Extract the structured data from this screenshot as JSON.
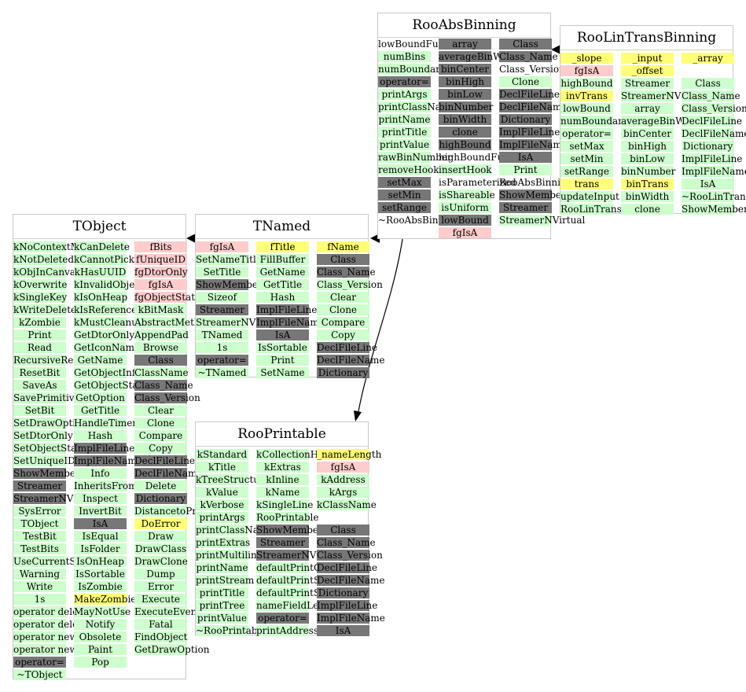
{
  "colors": {
    "green": "#ccffcc",
    "gray": "#777777",
    "pink": "#ffcccc",
    "yellow": "#ffff77",
    "border": "#c8c8c8",
    "edge": "#000000"
  },
  "classes": [
    {
      "id": "rooabsbinning",
      "title": "RooAbsBinning",
      "columns": [
        [
          [
            "lowBoundFunc",
            "w"
          ],
          [
            "numBins",
            "g"
          ],
          [
            "numBoundaries",
            "g"
          ],
          [
            "operator=",
            "d"
          ],
          [
            "printArgs",
            "g"
          ],
          [
            "printClassName",
            "g"
          ],
          [
            "printName",
            "g"
          ],
          [
            "printTitle",
            "g"
          ],
          [
            "printValue",
            "g"
          ],
          [
            "rawBinNumber",
            "g"
          ],
          [
            "removeHook",
            "g"
          ],
          [
            "setMax",
            "d"
          ],
          [
            "setMin",
            "d"
          ],
          [
            "setRange",
            "d"
          ],
          [
            "~RooAbsBinning",
            "w"
          ]
        ],
        [
          [
            "array",
            "d"
          ],
          [
            "averageBinWidth",
            "d"
          ],
          [
            "binCenter",
            "d"
          ],
          [
            "binHigh",
            "d"
          ],
          [
            "binLow",
            "d"
          ],
          [
            "binNumber",
            "d"
          ],
          [
            "binWidth",
            "d"
          ],
          [
            "clone",
            "d"
          ],
          [
            "highBound",
            "d"
          ],
          [
            "highBoundFunc",
            "w"
          ],
          [
            "insertHook",
            "g"
          ],
          [
            "isParameterized",
            "w"
          ],
          [
            "isShareable",
            "g"
          ],
          [
            "isUniform",
            "g"
          ],
          [
            "lowBound",
            "d"
          ],
          [
            "fgIsA",
            "p"
          ]
        ],
        [
          [
            "Class",
            "d"
          ],
          [
            "Class_Name",
            "d"
          ],
          [
            "Class_Version",
            "w"
          ],
          [
            "Clone",
            "g"
          ],
          [
            "DeclFileLine",
            "d"
          ],
          [
            "DeclFileName",
            "d"
          ],
          [
            "Dictionary",
            "d"
          ],
          [
            "ImplFileLine",
            "d"
          ],
          [
            "ImplFileName",
            "d"
          ],
          [
            "IsA",
            "d"
          ],
          [
            "Print",
            "g"
          ],
          [
            "RooAbsBinning",
            "w"
          ],
          [
            "ShowMembers",
            "d"
          ],
          [
            "Streamer",
            "d"
          ],
          [
            "StreamerNVirtual",
            "g"
          ]
        ]
      ]
    },
    {
      "id": "roolintransbinning",
      "title": "RooLinTransBinning",
      "columns": [
        [
          [
            "_slope",
            "y"
          ],
          [
            "fgIsA",
            "p"
          ],
          [
            "highBound",
            "g"
          ],
          [
            "invTrans",
            "y"
          ],
          [
            "lowBound",
            "g"
          ],
          [
            "numBoundaries",
            "g"
          ],
          [
            "operator=",
            "g"
          ],
          [
            "setMax",
            "g"
          ],
          [
            "setMin",
            "g"
          ],
          [
            "setRange",
            "g"
          ],
          [
            "trans",
            "y"
          ],
          [
            "updateInput",
            "g"
          ],
          [
            "RooLinTransBinning",
            "g"
          ]
        ],
        [
          [
            "_input",
            "y"
          ],
          [
            "_offset",
            "y"
          ],
          [
            "Streamer",
            "g"
          ],
          [
            "StreamerNVirtual",
            "g"
          ],
          [
            "array",
            "g"
          ],
          [
            "averageBinWidth",
            "g"
          ],
          [
            "binCenter",
            "g"
          ],
          [
            "binHigh",
            "g"
          ],
          [
            "binLow",
            "g"
          ],
          [
            "binNumber",
            "g"
          ],
          [
            "binTrans",
            "y"
          ],
          [
            "binWidth",
            "g"
          ],
          [
            "clone",
            "g"
          ]
        ],
        [
          [
            "_array",
            "y"
          ],
          [
            "",
            "w"
          ],
          [
            "Class",
            "g"
          ],
          [
            "Class_Name",
            "g"
          ],
          [
            "Class_Version",
            "g"
          ],
          [
            "DeclFileLine",
            "g"
          ],
          [
            "DeclFileName",
            "g"
          ],
          [
            "Dictionary",
            "g"
          ],
          [
            "ImplFileLine",
            "g"
          ],
          [
            "ImplFileName",
            "g"
          ],
          [
            "IsA",
            "g"
          ],
          [
            "~RooLinTransBinning",
            "g"
          ],
          [
            "ShowMembers",
            "g"
          ]
        ]
      ]
    },
    {
      "id": "tobject",
      "title": "TObject",
      "columns": [
        [
          [
            "kNoContextMenu",
            "g"
          ],
          [
            "kNotDeleted",
            "g"
          ],
          [
            "kObjInCanvas",
            "g"
          ],
          [
            "kOverwrite",
            "g"
          ],
          [
            "kSingleKey",
            "g"
          ],
          [
            "kWriteDelete",
            "g"
          ],
          [
            "kZombie",
            "g"
          ],
          [
            "Print",
            "g"
          ],
          [
            "Read",
            "g"
          ],
          [
            "RecursiveRemove",
            "g"
          ],
          [
            "ResetBit",
            "g"
          ],
          [
            "SaveAs",
            "g"
          ],
          [
            "SavePrimitive",
            "g"
          ],
          [
            "SetBit",
            "g"
          ],
          [
            "SetDrawOption",
            "g"
          ],
          [
            "SetDtorOnly",
            "g"
          ],
          [
            "SetObjectStat",
            "g"
          ],
          [
            "SetUniqueID",
            "g"
          ],
          [
            "ShowMembers",
            "d"
          ],
          [
            "Streamer",
            "d"
          ],
          [
            "StreamerNVirtual",
            "d"
          ],
          [
            "SysError",
            "g"
          ],
          [
            "TObject",
            "g"
          ],
          [
            "TestBit",
            "g"
          ],
          [
            "TestBits",
            "g"
          ],
          [
            "UseCurrentStyle",
            "g"
          ],
          [
            "Warning",
            "g"
          ],
          [
            "Write",
            "g"
          ],
          [
            "1s",
            "g"
          ],
          [
            "operator delete",
            "g"
          ],
          [
            "operator delete[]",
            "g"
          ],
          [
            "operator new",
            "g"
          ],
          [
            "operator new[]",
            "g"
          ],
          [
            "operator=",
            "d"
          ],
          [
            "~TObject",
            "g"
          ]
        ],
        [
          [
            "kCanDelete",
            "g"
          ],
          [
            "kCannotPick",
            "g"
          ],
          [
            "kHasUUID",
            "g"
          ],
          [
            "kInvalidObject",
            "g"
          ],
          [
            "kIsOnHeap",
            "g"
          ],
          [
            "kIsReferenced",
            "g"
          ],
          [
            "kMustCleanup",
            "g"
          ],
          [
            "GetDtorOnly",
            "g"
          ],
          [
            "GetIconName",
            "g"
          ],
          [
            "GetName",
            "g"
          ],
          [
            "GetObjectInfo",
            "g"
          ],
          [
            "GetObjectStat",
            "g"
          ],
          [
            "GetOption",
            "g"
          ],
          [
            "GetTitle",
            "g"
          ],
          [
            "HandleTimer",
            "g"
          ],
          [
            "Hash",
            "g"
          ],
          [
            "ImplFileLine",
            "d"
          ],
          [
            "ImplFileName",
            "d"
          ],
          [
            "Info",
            "g"
          ],
          [
            "InheritsFrom",
            "g"
          ],
          [
            "Inspect",
            "g"
          ],
          [
            "InvertBit",
            "g"
          ],
          [
            "IsA",
            "d"
          ],
          [
            "IsEqual",
            "g"
          ],
          [
            "IsFolder",
            "g"
          ],
          [
            "IsOnHeap",
            "g"
          ],
          [
            "IsSortable",
            "g"
          ],
          [
            "IsZombie",
            "g"
          ],
          [
            "MakeZombie",
            "y"
          ],
          [
            "MayNotUse",
            "g"
          ],
          [
            "Notify",
            "g"
          ],
          [
            "Obsolete",
            "g"
          ],
          [
            "Paint",
            "g"
          ],
          [
            "Pop",
            "g"
          ]
        ],
        [
          [
            "fBits",
            "p"
          ],
          [
            "fUniqueID",
            "p"
          ],
          [
            "fgDtorOnly",
            "p"
          ],
          [
            "fgIsA",
            "p"
          ],
          [
            "fgObjectStat",
            "p"
          ],
          [
            "kBitMask",
            "g"
          ],
          [
            "AbstractMethod",
            "g"
          ],
          [
            "AppendPad",
            "g"
          ],
          [
            "Browse",
            "g"
          ],
          [
            "Class",
            "d"
          ],
          [
            "ClassName",
            "g"
          ],
          [
            "Class_Name",
            "d"
          ],
          [
            "Class_Version",
            "d"
          ],
          [
            "Clear",
            "g"
          ],
          [
            "Clone",
            "g"
          ],
          [
            "Compare",
            "g"
          ],
          [
            "Copy",
            "g"
          ],
          [
            "DeclFileLine",
            "d"
          ],
          [
            "DeclFileName",
            "d"
          ],
          [
            "Delete",
            "g"
          ],
          [
            "Dictionary",
            "d"
          ],
          [
            "DistancetoPrimitive",
            "g"
          ],
          [
            "DoError",
            "y"
          ],
          [
            "Draw",
            "g"
          ],
          [
            "DrawClass",
            "g"
          ],
          [
            "DrawClone",
            "g"
          ],
          [
            "Dump",
            "g"
          ],
          [
            "Error",
            "g"
          ],
          [
            "Execute",
            "g"
          ],
          [
            "ExecuteEvent",
            "g"
          ],
          [
            "Fatal",
            "g"
          ],
          [
            "FindObject",
            "g"
          ],
          [
            "GetDrawOption",
            "g"
          ]
        ]
      ]
    },
    {
      "id": "tnamed",
      "title": "TNamed",
      "columns": [
        [
          [
            "fgIsA",
            "p"
          ],
          [
            "SetNameTitle",
            "g"
          ],
          [
            "SetTitle",
            "g"
          ],
          [
            "ShowMembers",
            "d"
          ],
          [
            "Sizeof",
            "g"
          ],
          [
            "Streamer",
            "d"
          ],
          [
            "StreamerNVirtual",
            "g"
          ],
          [
            "TNamed",
            "g"
          ],
          [
            "1s",
            "g"
          ],
          [
            "operator=",
            "d"
          ],
          [
            "~TNamed",
            "g"
          ]
        ],
        [
          [
            "fTitle",
            "y"
          ],
          [
            "FillBuffer",
            "g"
          ],
          [
            "GetName",
            "g"
          ],
          [
            "GetTitle",
            "g"
          ],
          [
            "Hash",
            "g"
          ],
          [
            "ImplFileLine",
            "d"
          ],
          [
            "ImplFileName",
            "d"
          ],
          [
            "IsA",
            "d"
          ],
          [
            "IsSortable",
            "g"
          ],
          [
            "Print",
            "g"
          ],
          [
            "SetName",
            "g"
          ]
        ],
        [
          [
            "fName",
            "y"
          ],
          [
            "Class",
            "d"
          ],
          [
            "Class_Name",
            "d"
          ],
          [
            "Class_Version",
            "g"
          ],
          [
            "Clear",
            "g"
          ],
          [
            "Clone",
            "g"
          ],
          [
            "Compare",
            "g"
          ],
          [
            "Copy",
            "g"
          ],
          [
            "DeclFileLine",
            "d"
          ],
          [
            "DeclFileName",
            "d"
          ],
          [
            "Dictionary",
            "d"
          ]
        ]
      ]
    },
    {
      "id": "rooprintable",
      "title": "RooPrintable",
      "columns": [
        [
          [
            "kStandard",
            "g"
          ],
          [
            "kTitle",
            "g"
          ],
          [
            "kTreeStructure",
            "g"
          ],
          [
            "kValue",
            "g"
          ],
          [
            "kVerbose",
            "g"
          ],
          [
            "printArgs",
            "g"
          ],
          [
            "printClassName",
            "g"
          ],
          [
            "printExtras",
            "g"
          ],
          [
            "printMultiline",
            "g"
          ],
          [
            "printName",
            "g"
          ],
          [
            "printStream",
            "g"
          ],
          [
            "printTitle",
            "g"
          ],
          [
            "printTree",
            "g"
          ],
          [
            "printValue",
            "g"
          ],
          [
            "~RooPrintable",
            "g"
          ]
        ],
        [
          [
            "kCollectionHeader",
            "g"
          ],
          [
            "kExtras",
            "g"
          ],
          [
            "kInline",
            "g"
          ],
          [
            "kName",
            "g"
          ],
          [
            "kSingleLine",
            "g"
          ],
          [
            "RooPrintable",
            "g"
          ],
          [
            "ShowMembers",
            "d"
          ],
          [
            "Streamer",
            "d"
          ],
          [
            "StreamerNVirtual",
            "d"
          ],
          [
            "defaultPrintContents",
            "g"
          ],
          [
            "defaultPrintStream",
            "g"
          ],
          [
            "defaultPrintStyle",
            "g"
          ],
          [
            "nameFieldLength",
            "g"
          ],
          [
            "operator=",
            "d"
          ],
          [
            "printAddress",
            "g"
          ]
        ],
        [
          [
            "_nameLength",
            "y"
          ],
          [
            "fgIsA",
            "p"
          ],
          [
            "kAddress",
            "g"
          ],
          [
            "kArgs",
            "g"
          ],
          [
            "kClassName",
            "g"
          ],
          [
            "",
            "w"
          ],
          [
            "Class",
            "d"
          ],
          [
            "Class_Name",
            "d"
          ],
          [
            "Class_Version",
            "d"
          ],
          [
            "DeclFileLine",
            "d"
          ],
          [
            "DeclFileName",
            "d"
          ],
          [
            "Dictionary",
            "d"
          ],
          [
            "ImplFileLine",
            "d"
          ],
          [
            "ImplFileName",
            "d"
          ],
          [
            "IsA",
            "d"
          ]
        ]
      ]
    }
  ]
}
